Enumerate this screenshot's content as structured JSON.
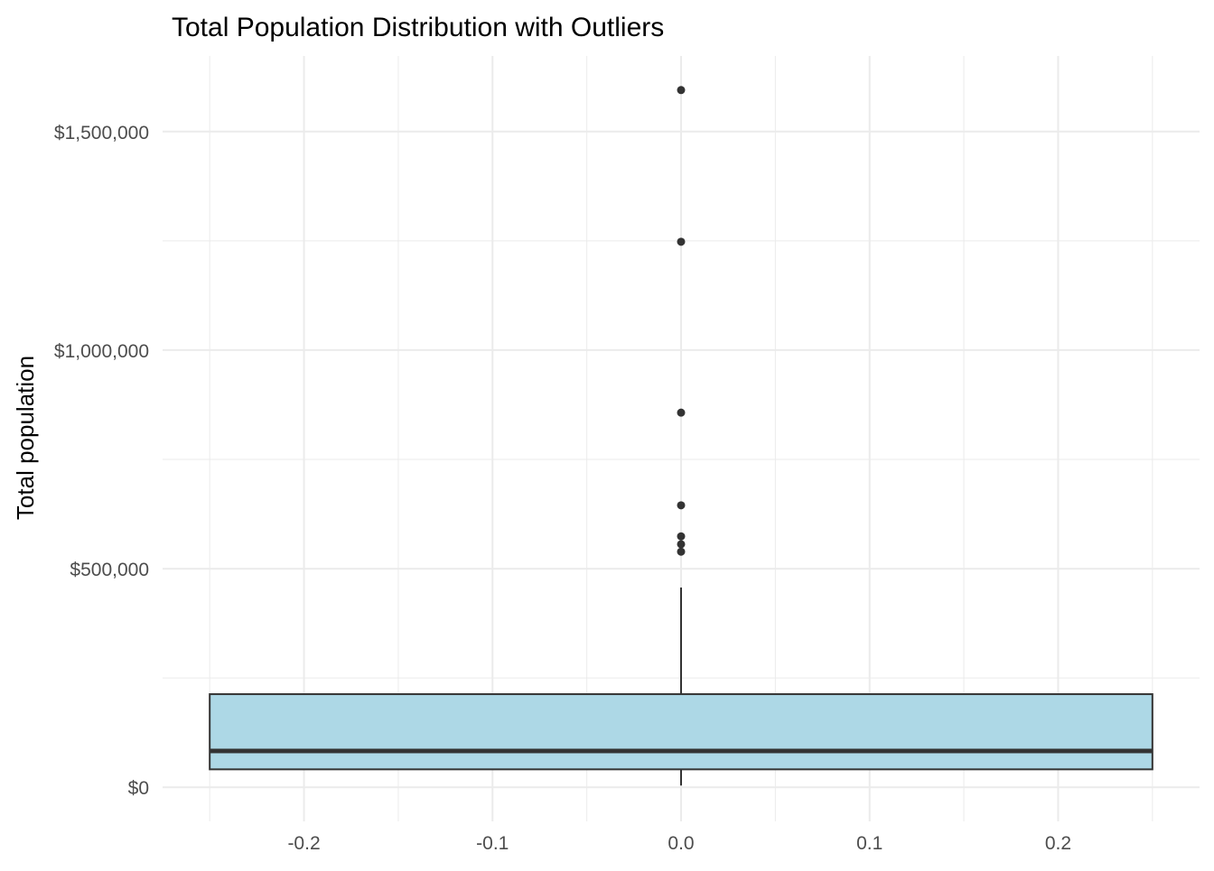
{
  "chart_data": {
    "type": "boxplot",
    "title": "Total Population Distribution with Outliers",
    "xlabel": "",
    "ylabel": "Total population",
    "xlim": [
      -0.275,
      0.275
    ],
    "ylim": [
      -78000,
      1673000
    ],
    "x_ticks": [
      -0.2,
      -0.1,
      0.0,
      0.1,
      0.2
    ],
    "x_tick_labels": [
      "-0.2",
      "-0.1",
      "0.0",
      "0.1",
      "0.2"
    ],
    "y_ticks": [
      0,
      500000,
      1000000,
      1500000
    ],
    "y_tick_labels": [
      "$0",
      "$500,000",
      "$1,000,000",
      "$1,500,000"
    ],
    "grid": true,
    "box": {
      "x": 0,
      "width": 0.5,
      "whisker_low": 4000,
      "q1": 41000,
      "median": 83000,
      "q3": 213000,
      "whisker_high": 457000,
      "fill": "#ADD8E6",
      "outliers": [
        539000,
        556000,
        574000,
        645000,
        857000,
        1248000,
        1595000
      ]
    }
  }
}
